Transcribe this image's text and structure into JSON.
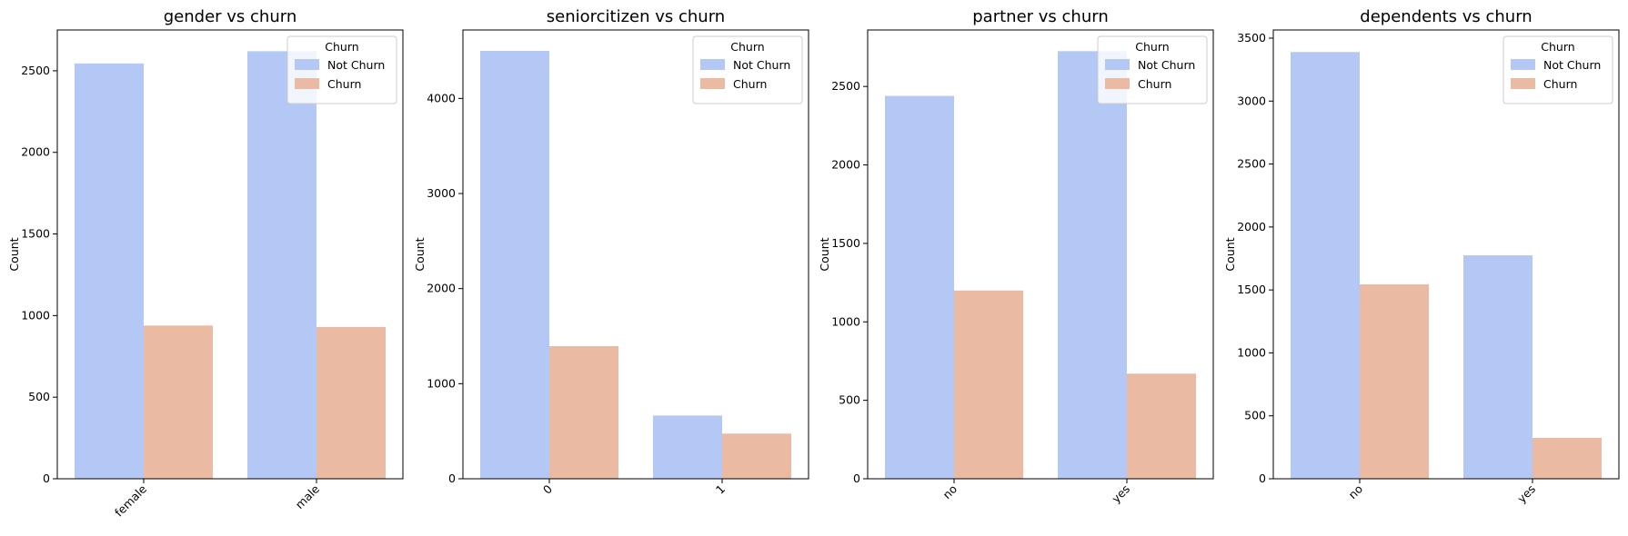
{
  "chart_data": [
    {
      "type": "bar",
      "title": "gender vs churn",
      "xlabel": "",
      "ylabel": "Count",
      "ylim": [
        0,
        2750
      ],
      "yticks": [
        0,
        500,
        1000,
        1500,
        2000,
        2500
      ],
      "categories": [
        "female",
        "male"
      ],
      "series": [
        {
          "name": "Not Churn",
          "values": [
            2545,
            2620
          ]
        },
        {
          "name": "Churn",
          "values": [
            939,
            930
          ]
        }
      ],
      "legend": {
        "title": "Churn",
        "placement": "top-right"
      },
      "grid": false
    },
    {
      "type": "bar",
      "title": "seniorcitizen vs churn",
      "xlabel": "",
      "ylabel": "Count",
      "ylim": [
        0,
        4720
      ],
      "yticks": [
        0,
        1000,
        2000,
        3000,
        4000
      ],
      "categories": [
        "0",
        "1"
      ],
      "series": [
        {
          "name": "Not Churn",
          "values": [
            4500,
            665
          ]
        },
        {
          "name": "Churn",
          "values": [
            1395,
            475
          ]
        }
      ],
      "legend": {
        "title": "Churn",
        "placement": "top-right"
      },
      "grid": false
    },
    {
      "type": "bar",
      "title": "partner vs churn",
      "xlabel": "",
      "ylabel": "Count",
      "ylim": [
        0,
        2860
      ],
      "yticks": [
        0,
        500,
        1000,
        1500,
        2000,
        2500
      ],
      "categories": [
        "no",
        "yes"
      ],
      "series": [
        {
          "name": "Not Churn",
          "values": [
            2440,
            2725
          ]
        },
        {
          "name": "Churn",
          "values": [
            1200,
            670
          ]
        }
      ],
      "legend": {
        "title": "Churn",
        "placement": "top-right"
      },
      "grid": false
    },
    {
      "type": "bar",
      "title": "dependents vs churn",
      "xlabel": "",
      "ylabel": "Count",
      "ylim": [
        0,
        3565
      ],
      "yticks": [
        0,
        500,
        1000,
        1500,
        2000,
        2500,
        3000,
        3500
      ],
      "categories": [
        "no",
        "yes"
      ],
      "series": [
        {
          "name": "Not Churn",
          "values": [
            3390,
            1775
          ]
        },
        {
          "name": "Churn",
          "values": [
            1545,
            325
          ]
        }
      ],
      "legend": {
        "title": "Churn",
        "placement": "top-right"
      },
      "grid": false
    }
  ],
  "colors": {
    "not_churn": "#b3c8f4",
    "churn": "#ebbaa3",
    "axis": "#000000",
    "legend_border": "#cccccc"
  }
}
